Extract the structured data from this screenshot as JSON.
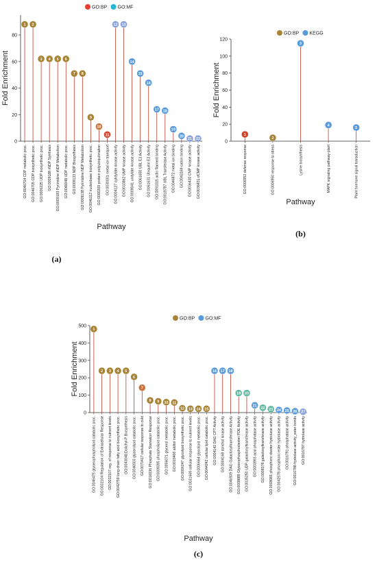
{
  "chart_data": [
    {
      "id": "a",
      "type": "scatter",
      "panel_label": "(a)",
      "title": "",
      "xlabel": "Pathway",
      "ylabel": "Fold Enrichment",
      "ylim": [
        0,
        95
      ],
      "yticks": [
        0,
        20,
        40,
        60,
        80
      ],
      "legend": [
        {
          "name": "GO:BP",
          "color": "#e8402f"
        },
        {
          "name": "GO:MF",
          "color": "#25b7d3"
        }
      ],
      "categories": [
        "GO:0046704 CDP metabolic proc.",
        "GO:0046705 CDP biosynthetic proc.",
        "GO:0006225 UDP biosynthetic proc.",
        "GO:0009188 rNDP Synthesis",
        "GO:0009193 Pyrimidine rNDP Metabolism",
        "GO:0046048 UDP metabolic proc.",
        "GO:0009133 NDP Biosynthesis",
        "GO:0009138 Pyrimidine NDP Metabolism",
        "GO:0046112 nucleobase biosynthetic proc.",
        "GO:0000209 protein polyubiquitination",
        "GO:0030001 metal ion transport",
        "GO:0004127 cytidylate kinase activity",
        "GO:0033862 UMP kinase activity",
        "GO:0009041 uridylate kinase activity",
        "GO:0061650 UBL E2 Activity",
        "GO:0061631 Ubiquitin E2 Activity",
        "GO:0051015 actin filament binding",
        "GO:0019787 UBL Transferase Activity",
        "GO:0046872 metal ion binding",
        "GO:0043169 cation binding",
        "GO:0036430 CMP kinase activity",
        "GO:0036431 dCMP kinase activity"
      ],
      "points": [
        {
          "x": 0,
          "y": 88,
          "cls": "BP",
          "color": "#a78336",
          "label": "1"
        },
        {
          "x": 1,
          "y": 88,
          "cls": "BP",
          "color": "#a78336",
          "label": "2"
        },
        {
          "x": 2,
          "y": 62,
          "cls": "BP",
          "color": "#a78336",
          "label": "3"
        },
        {
          "x": 3,
          "y": 62,
          "cls": "BP",
          "color": "#a78336",
          "label": "4"
        },
        {
          "x": 4,
          "y": 62,
          "cls": "BP",
          "color": "#a78336",
          "label": "5"
        },
        {
          "x": 5,
          "y": 62,
          "cls": "BP",
          "color": "#a78336",
          "label": "6"
        },
        {
          "x": 6,
          "y": 51,
          "cls": "BP",
          "color": "#a78336",
          "label": "7"
        },
        {
          "x": 7,
          "y": 51,
          "cls": "BP",
          "color": "#a78336",
          "label": "8"
        },
        {
          "x": 8,
          "y": 18,
          "cls": "BP",
          "color": "#a78336",
          "label": "9"
        },
        {
          "x": 9,
          "y": 11,
          "cls": "BP",
          "color": "#c9743c",
          "label": "10"
        },
        {
          "x": 10,
          "y": 5,
          "cls": "BP",
          "color": "#d0452f",
          "label": "11"
        },
        {
          "x": 11,
          "y": 88,
          "cls": "MF",
          "color": "#8aa0d8",
          "label": "12"
        },
        {
          "x": 12,
          "y": 88,
          "cls": "MF",
          "color": "#8aa0d8",
          "label": "13"
        },
        {
          "x": 13,
          "y": 60,
          "cls": "MF",
          "color": "#5a9ad8",
          "label": "14"
        },
        {
          "x": 14,
          "y": 51,
          "cls": "MF",
          "color": "#5a9ad8",
          "label": "15"
        },
        {
          "x": 15,
          "y": 44,
          "cls": "MF",
          "color": "#5a9ad8",
          "label": "16"
        },
        {
          "x": 16,
          "y": 24,
          "cls": "MF",
          "color": "#5a9ad8",
          "label": "17"
        },
        {
          "x": 17,
          "y": 23,
          "cls": "MF",
          "color": "#5a9ad8",
          "label": "18"
        },
        {
          "x": 18,
          "y": 9,
          "cls": "MF",
          "color": "#5a9ad8",
          "label": "19"
        },
        {
          "x": 19,
          "y": 4,
          "cls": "MF",
          "color": "#5a9ad8",
          "label": "20"
        },
        {
          "x": 20,
          "y": 2,
          "cls": "MF",
          "color": "#8aa0d8",
          "label": "21"
        },
        {
          "x": 21,
          "y": 2,
          "cls": "MF",
          "color": "#8aa0d8",
          "label": "22"
        }
      ]
    },
    {
      "id": "b",
      "type": "scatter",
      "panel_label": "(b)",
      "title": "",
      "xlabel": "Pathway",
      "ylabel": "Fold Enrichment",
      "ylim": [
        0,
        120
      ],
      "yticks": [
        0,
        20,
        40,
        60,
        80,
        100,
        120
      ],
      "legend": [
        {
          "name": "GO:BP",
          "color": "#a78336"
        },
        {
          "name": "KEGG",
          "color": "#5a9ad8"
        }
      ],
      "categories": [
        "GO:0006952 defense response",
        "GO:0006950 response to stress",
        "Lysine biosynthesis",
        "MAPK signaling pathway-plant",
        "Plant hormone signal transduction"
      ],
      "points": [
        {
          "x": 0,
          "y": 8,
          "cls": "BP",
          "color": "#d0452f",
          "label": "1"
        },
        {
          "x": 1,
          "y": 4,
          "cls": "BP",
          "color": "#a78336",
          "label": "2"
        },
        {
          "x": 2,
          "y": 115,
          "cls": "KEGG",
          "color": "#5a9ad8",
          "label": "3"
        },
        {
          "x": 3,
          "y": 19,
          "cls": "KEGG",
          "color": "#5a9ad8",
          "label": "4"
        },
        {
          "x": 4,
          "y": 16,
          "cls": "KEGG",
          "color": "#5a9ad8",
          "label": "5"
        }
      ]
    },
    {
      "id": "c",
      "type": "scatter",
      "panel_label": "(c)",
      "title": "",
      "xlabel": "Pathway",
      "ylabel": "Fold Enrichment",
      "ylim": [
        0,
        500
      ],
      "yticks": [
        0,
        100,
        200,
        300,
        400,
        500
      ],
      "legend": [
        {
          "name": "GO:BP",
          "color": "#a78336"
        },
        {
          "name": "GO:MF",
          "color": "#5a9ad8"
        }
      ],
      "categories": [
        "GO:0046475 glycerophospholipid catabolic proc.",
        "GO:0032104 Regulation of Extracellular Response",
        "GO:0032107 reg. of response to nutrient levels",
        "GO:0042759 long-chain fatty acid biosynthetic proc.",
        "GO:0043048 Dolichyl-P Biosynthesis",
        "GO:0046503 glycerolipid catabolic proc.",
        "GO:0070417 cellular response to cold",
        "GO:0016036 Phosphate Starvation Response",
        "GO:0009395 phospholipid catabolic proc.",
        "GO:0006071 glycerol metabolic proc.",
        "GO:0019400 alditol metabolic proc.",
        "GO:0006247 glycolipid biosynthetic proc.",
        "GO:0031669 cellular response to nutrient levels",
        "GO:0006664 glycolipid metabolic proc.",
        "GO:0044242 cellular lipid catabolic proc.",
        "GO:0004142 DAG CPT Activity",
        "GO:0004168 dolichol kinase activity",
        "GO:0046509 DAG Galactosyltransferase Activity",
        "GO:0008889 Glycerophosphodiester PDE Activity",
        "GO:0035250 UDP-galactosyltransferase activity",
        "GO:0003993 acid phosphatase activity",
        "GO:0008378 galactosyltransferase activity",
        "GO:0008081 phosphoric diester hydrolase activity",
        "GO:0042578 phosphoric ester hydrolase activity",
        "GO:0016791 phosphatase activity",
        "GO:0016788 hydrolase activity_ester bonds",
        "GO:0016787 hydrolase activity"
      ],
      "points": [
        {
          "x": 0,
          "y": 480,
          "cls": "BP",
          "color": "#a78336",
          "label": "1"
        },
        {
          "x": 1,
          "y": 240,
          "cls": "BP",
          "color": "#a78336",
          "label": "2"
        },
        {
          "x": 2,
          "y": 240,
          "cls": "BP",
          "color": "#a78336",
          "label": "3"
        },
        {
          "x": 3,
          "y": 240,
          "cls": "BP",
          "color": "#a78336",
          "label": "4"
        },
        {
          "x": 4,
          "y": 240,
          "cls": "BP",
          "color": "#a78336",
          "label": "5"
        },
        {
          "x": 5,
          "y": 205,
          "cls": "BP",
          "color": "#a78336",
          "label": "6"
        },
        {
          "x": 6,
          "y": 143,
          "cls": "BP",
          "color": "#c9743c",
          "label": "7"
        },
        {
          "x": 7,
          "y": 70,
          "cls": "BP",
          "color": "#a78336",
          "label": "8"
        },
        {
          "x": 8,
          "y": 65,
          "cls": "BP",
          "color": "#a78336",
          "label": "9"
        },
        {
          "x": 9,
          "y": 60,
          "cls": "BP",
          "color": "#a78336",
          "label": "10"
        },
        {
          "x": 10,
          "y": 58,
          "cls": "BP",
          "color": "#a78336",
          "label": "11"
        },
        {
          "x": 11,
          "y": 25,
          "cls": "BP",
          "color": "#a78336",
          "label": "12"
        },
        {
          "x": 12,
          "y": 22,
          "cls": "BP",
          "color": "#a78336",
          "label": "13"
        },
        {
          "x": 13,
          "y": 22,
          "cls": "BP",
          "color": "#a78336",
          "label": "14"
        },
        {
          "x": 14,
          "y": 22,
          "cls": "BP",
          "color": "#a78336",
          "label": "15"
        },
        {
          "x": 15,
          "y": 240,
          "cls": "MF",
          "color": "#5a9ad8",
          "label": "16"
        },
        {
          "x": 16,
          "y": 240,
          "cls": "MF",
          "color": "#5a9ad8",
          "label": "17"
        },
        {
          "x": 17,
          "y": 240,
          "cls": "MF",
          "color": "#5a9ad8",
          "label": "18"
        },
        {
          "x": 18,
          "y": 112,
          "cls": "MF",
          "color": "#5fb8a0",
          "label": "19"
        },
        {
          "x": 19,
          "y": 112,
          "cls": "MF",
          "color": "#5fb8a0",
          "label": "20"
        },
        {
          "x": 20,
          "y": 42,
          "cls": "MF",
          "color": "#5a9ad8",
          "label": "21"
        },
        {
          "x": 21,
          "y": 28,
          "cls": "MF",
          "color": "#5fb8a0",
          "label": "22"
        },
        {
          "x": 22,
          "y": 20,
          "cls": "MF",
          "color": "#5fb8a0",
          "label": "23"
        },
        {
          "x": 23,
          "y": 15,
          "cls": "MF",
          "color": "#5a9ad8",
          "label": "24"
        },
        {
          "x": 24,
          "y": 12,
          "cls": "MF",
          "color": "#5a9ad8",
          "label": "25"
        },
        {
          "x": 25,
          "y": 8,
          "cls": "MF",
          "color": "#5a9ad8",
          "label": "26"
        },
        {
          "x": 26,
          "y": 5,
          "cls": "MF",
          "color": "#8aa0d8",
          "label": "27"
        }
      ]
    }
  ]
}
